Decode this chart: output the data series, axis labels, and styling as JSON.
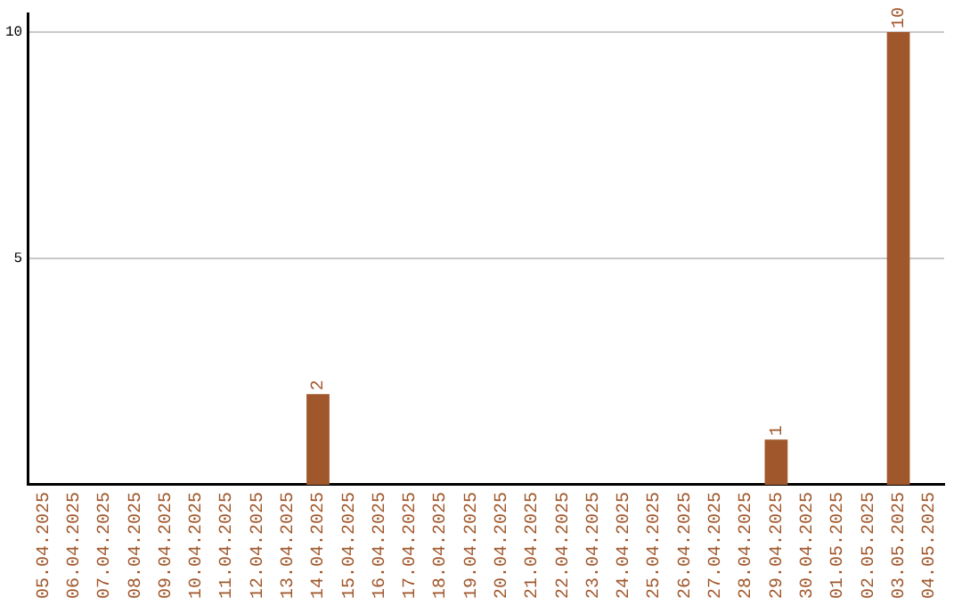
{
  "chart_data": {
    "type": "bar",
    "categories": [
      "05.04.2025",
      "06.04.2025",
      "07.04.2025",
      "08.04.2025",
      "09.04.2025",
      "10.04.2025",
      "11.04.2025",
      "12.04.2025",
      "13.04.2025",
      "14.04.2025",
      "15.04.2025",
      "16.04.2025",
      "17.04.2025",
      "18.04.2025",
      "19.04.2025",
      "20.04.2025",
      "21.04.2025",
      "22.04.2025",
      "23.04.2025",
      "24.04.2025",
      "25.04.2025",
      "26.04.2025",
      "27.04.2025",
      "28.04.2025",
      "29.04.2025",
      "30.04.2025",
      "01.05.2025",
      "02.05.2025",
      "03.05.2025",
      "04.05.2025"
    ],
    "values": [
      0,
      0,
      0,
      0,
      0,
      0,
      0,
      0,
      0,
      2,
      0,
      0,
      0,
      0,
      0,
      0,
      0,
      0,
      0,
      0,
      0,
      0,
      0,
      0,
      1,
      0,
      0,
      0,
      10,
      0
    ],
    "value_labels": [
      null,
      null,
      null,
      null,
      null,
      null,
      null,
      null,
      null,
      "2",
      null,
      null,
      null,
      null,
      null,
      null,
      null,
      null,
      null,
      null,
      null,
      null,
      null,
      null,
      "1",
      null,
      null,
      null,
      "10",
      null
    ],
    "color": "#a0572b",
    "ylim": [
      0,
      10.4
    ],
    "yticks": [
      5,
      10
    ],
    "grid": "y",
    "legend": false
  }
}
